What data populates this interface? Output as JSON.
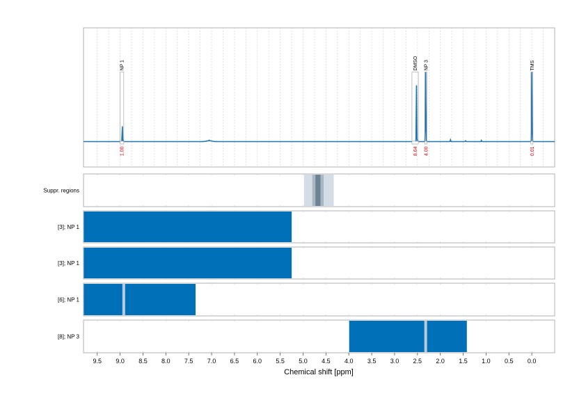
{
  "chart_data": {
    "type": "line",
    "xlabel": "Chemical shift [ppm]",
    "xlim": [
      9.8,
      -0.5
    ],
    "x_ticks": [
      "9.5",
      "9.0",
      "8.5",
      "8.0",
      "7.5",
      "7.0",
      "6.5",
      "6.0",
      "5.5",
      "5.0",
      "4.5",
      "4.0",
      "3.5",
      "3.0",
      "2.5",
      "2.0",
      "1.5",
      "1.0",
      "0.5",
      "0.0"
    ],
    "colors": {
      "spectrum": "#1f77b4",
      "bar": "#0070b8",
      "integral": "#e8000b",
      "suppr_outer": "#d4dde6",
      "suppr_mid": "#a9b8c6",
      "suppr_core": "#6f8291"
    },
    "spectrum": {
      "baseline": 0.0,
      "peaks": [
        {
          "label": "NP 1",
          "ppm": 8.95,
          "height": 0.22,
          "integral": "1.00",
          "box_from": 9.0,
          "box_to": 8.92
        },
        {
          "label": "DMSO",
          "ppm": 2.52,
          "height": 0.81,
          "integral": "8.64",
          "box_from": 2.62,
          "box_to": 2.48
        },
        {
          "label": "NP 3",
          "ppm": 2.32,
          "height": 1.0,
          "integral": "4.00",
          "box_from": 2.34,
          "box_to": 2.3
        },
        {
          "label": "TMS",
          "ppm": 0.0,
          "height": 1.0,
          "integral": "0.01",
          "box_from": 0.02,
          "box_to": -0.02
        }
      ],
      "minor_peaks": [
        {
          "ppm": 7.05,
          "height": 0.01
        },
        {
          "ppm": 1.78,
          "height": 0.03
        },
        {
          "ppm": 1.45,
          "height": 0.02
        },
        {
          "ppm": 1.1,
          "height": 0.02
        }
      ]
    },
    "tracks": [
      {
        "label": "Suppr. regions",
        "type": "suppression",
        "regions": [
          {
            "from": 4.98,
            "to": 4.33,
            "level": "outer"
          },
          {
            "from": 4.8,
            "to": 4.55,
            "level": "mid"
          },
          {
            "from": 4.73,
            "to": 4.62,
            "level": "core"
          }
        ]
      },
      {
        "label": "[3]; NP 1",
        "type": "range",
        "segments": [
          {
            "from": 9.8,
            "to": 5.25
          }
        ],
        "dividers": []
      },
      {
        "label": "[3]; NP 1",
        "type": "range",
        "segments": [
          {
            "from": 9.8,
            "to": 5.25
          }
        ],
        "dividers": []
      },
      {
        "label": "[6]; NP 1",
        "type": "range",
        "segments": [
          {
            "from": 9.8,
            "to": 7.35
          }
        ],
        "dividers": [
          8.92
        ]
      },
      {
        "label": "[8]; NP 3",
        "type": "range",
        "segments": [
          {
            "from": 4.0,
            "to": 1.42
          }
        ],
        "dividers": [
          2.32
        ]
      }
    ]
  }
}
